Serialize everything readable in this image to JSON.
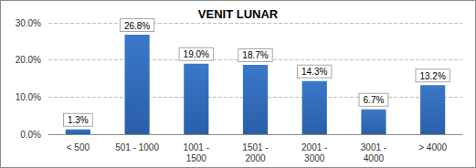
{
  "chart_data": {
    "type": "bar",
    "title": "VENIT LUNAR",
    "categories": [
      "< 500",
      "501 - 1000",
      "1001 - 1500",
      "1501 - 2000",
      "2001 - 3000",
      "3001 - 4000",
      "> 4000"
    ],
    "values": [
      1.3,
      26.8,
      19.0,
      18.7,
      14.3,
      6.7,
      13.2
    ],
    "value_labels": [
      "1.3%",
      "26.8%",
      "19.0%",
      "18.7%",
      "14.3%",
      "6.7%",
      "13.2%"
    ],
    "color": "#3a78c9",
    "ylim": [
      0,
      30
    ],
    "yticks": [
      {
        "value": 0,
        "label": "0.0%"
      },
      {
        "value": 10,
        "label": "10.0%"
      },
      {
        "value": 20,
        "label": "20.0%"
      },
      {
        "value": 30,
        "label": "30.0%"
      }
    ],
    "grid": true,
    "data_labels": true
  }
}
